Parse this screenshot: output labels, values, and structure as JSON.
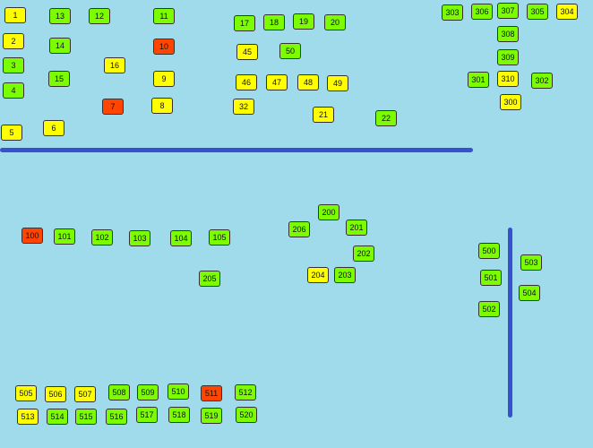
{
  "tables": [
    {
      "label": "1",
      "color": "#ffff00"
    },
    {
      "label": "2",
      "color": "#ffff00"
    },
    {
      "label": "3",
      "color": "#7cfc00"
    },
    {
      "label": "4",
      "color": "#7cfc00"
    },
    {
      "label": "5",
      "color": "#ffff00"
    },
    {
      "label": "13",
      "color": "#7cfc00"
    },
    {
      "label": "14",
      "color": "#7cfc00"
    },
    {
      "label": "15",
      "color": "#7cfc00"
    },
    {
      "label": "6",
      "color": "#ffff00"
    },
    {
      "label": "12",
      "color": "#7cfc00"
    },
    {
      "label": "16",
      "color": "#ffff00"
    },
    {
      "label": "7",
      "color": "#ff4500"
    },
    {
      "label": "11",
      "color": "#7cfc00"
    },
    {
      "label": "10",
      "color": "#ff4500"
    },
    {
      "label": "9",
      "color": "#ffff00"
    },
    {
      "label": "8",
      "color": "#ffff00"
    },
    {
      "label": "17",
      "color": "#7cfc00"
    },
    {
      "label": "18",
      "color": "#7cfc00"
    },
    {
      "label": "19",
      "color": "#7cfc00"
    },
    {
      "label": "20",
      "color": "#7cfc00"
    },
    {
      "label": "45",
      "color": "#ffff00"
    },
    {
      "label": "50",
      "color": "#7cfc00"
    },
    {
      "label": "46",
      "color": "#ffff00"
    },
    {
      "label": "47",
      "color": "#ffff00"
    },
    {
      "label": "48",
      "color": "#ffff00"
    },
    {
      "label": "49",
      "color": "#ffff00"
    },
    {
      "label": "32",
      "color": "#ffff00"
    },
    {
      "label": "21",
      "color": "#ffff00"
    },
    {
      "label": "22",
      "color": "#7cfc00"
    },
    {
      "label": "303",
      "color": "#7cfc00"
    },
    {
      "label": "306",
      "color": "#7cfc00"
    },
    {
      "label": "307",
      "color": "#7cfc00"
    },
    {
      "label": "305",
      "color": "#7cfc00"
    },
    {
      "label": "304",
      "color": "#ffff00"
    },
    {
      "label": "308",
      "color": "#7cfc00"
    },
    {
      "label": "309",
      "color": "#7cfc00"
    },
    {
      "label": "301",
      "color": "#7cfc00"
    },
    {
      "label": "310",
      "color": "#ffff00"
    },
    {
      "label": "302",
      "color": "#7cfc00"
    },
    {
      "label": "300",
      "color": "#ffff00"
    },
    {
      "label": "100",
      "color": "#ff4500"
    },
    {
      "label": "101",
      "color": "#7cfc00"
    },
    {
      "label": "102",
      "color": "#7cfc00"
    },
    {
      "label": "103",
      "color": "#7cfc00"
    },
    {
      "label": "104",
      "color": "#7cfc00"
    },
    {
      "label": "105",
      "color": "#7cfc00"
    },
    {
      "label": "205",
      "color": "#7cfc00"
    },
    {
      "label": "200",
      "color": "#7cfc00"
    },
    {
      "label": "206",
      "color": "#7cfc00"
    },
    {
      "label": "201",
      "color": "#7cfc00"
    },
    {
      "label": "202",
      "color": "#7cfc00"
    },
    {
      "label": "204",
      "color": "#ffff00"
    },
    {
      "label": "203",
      "color": "#7cfc00"
    },
    {
      "label": "500",
      "color": "#7cfc00"
    },
    {
      "label": "501",
      "color": "#7cfc00"
    },
    {
      "label": "502",
      "color": "#7cfc00"
    },
    {
      "label": "503",
      "color": "#7cfc00"
    },
    {
      "label": "504",
      "color": "#7cfc00"
    },
    {
      "label": "505",
      "color": "#ffff00"
    },
    {
      "label": "506",
      "color": "#ffff00"
    },
    {
      "label": "507",
      "color": "#ffff00"
    },
    {
      "label": "508",
      "color": "#7cfc00"
    },
    {
      "label": "509",
      "color": "#7cfc00"
    },
    {
      "label": "510",
      "color": "#7cfc00"
    },
    {
      "label": "511",
      "color": "#ff4500"
    },
    {
      "label": "512",
      "color": "#7cfc00"
    },
    {
      "label": "513",
      "color": "#ffff00"
    },
    {
      "label": "514",
      "color": "#7cfc00"
    },
    {
      "label": "515",
      "color": "#7cfc00"
    },
    {
      "label": "516",
      "color": "#7cfc00"
    },
    {
      "label": "517",
      "color": "#7cfc00"
    },
    {
      "label": "518",
      "color": "#7cfc00"
    },
    {
      "label": "519",
      "color": "#7cfc00"
    },
    {
      "label": "520",
      "color": "#7cfc00"
    }
  ]
}
